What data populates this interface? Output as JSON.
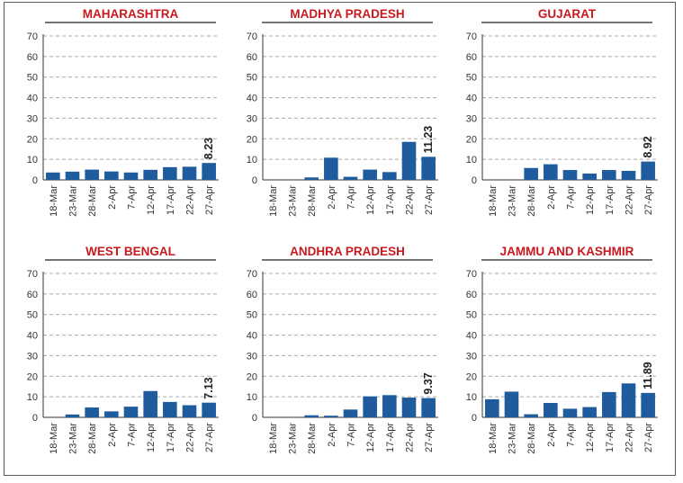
{
  "colors": {
    "bar": "#1f5c9e",
    "title": "#c8191f",
    "grid": "#aaaaaa",
    "axis": "#333333"
  },
  "chart_data": [
    {
      "type": "bar",
      "title": "MAHARASHTRA",
      "categories": [
        "18-Mar",
        "23-Mar",
        "28-Mar",
        "2-Apr",
        "7-Apr",
        "12-Apr",
        "17-Apr",
        "22-Apr",
        "27-Apr"
      ],
      "values": [
        3.6,
        4.0,
        5.0,
        4.1,
        3.6,
        4.9,
        6.2,
        6.4,
        8.23
      ],
      "data_label": "8.23",
      "ylim": [
        0,
        70
      ],
      "yticks": [
        0,
        10,
        20,
        30,
        40,
        50,
        60,
        70
      ],
      "grid": true
    },
    {
      "type": "bar",
      "title": "MADHYA PRADESH",
      "categories": [
        "18-Mar",
        "23-Mar",
        "28-Mar",
        "2-Apr",
        "7-Apr",
        "12-Apr",
        "17-Apr",
        "22-Apr",
        "27-Apr"
      ],
      "values": [
        0,
        0,
        1.2,
        10.8,
        1.5,
        5.0,
        3.8,
        18.5,
        11.23
      ],
      "data_label": "11.23",
      "ylim": [
        0,
        70
      ],
      "yticks": [
        0,
        10,
        20,
        30,
        40,
        50,
        60,
        70
      ],
      "grid": true
    },
    {
      "type": "bar",
      "title": "GUJARAT",
      "categories": [
        "18-Mar",
        "23-Mar",
        "28-Mar",
        "2-Apr",
        "7-Apr",
        "12-Apr",
        "17-Apr",
        "22-Apr",
        "27-Apr"
      ],
      "values": [
        0,
        0,
        5.8,
        7.6,
        4.8,
        3.1,
        4.8,
        4.4,
        8.92
      ],
      "data_label": "8.92",
      "ylim": [
        0,
        70
      ],
      "yticks": [
        0,
        10,
        20,
        30,
        40,
        50,
        60,
        70
      ],
      "grid": true
    },
    {
      "type": "bar",
      "title": "WEST BENGAL",
      "categories": [
        "18-Mar",
        "23-Mar",
        "28-Mar",
        "2-Apr",
        "7-Apr",
        "12-Apr",
        "17-Apr",
        "22-Apr",
        "27-Apr"
      ],
      "values": [
        0,
        1.4,
        4.8,
        2.9,
        5.2,
        12.8,
        7.5,
        5.9,
        7.13
      ],
      "data_label": "7.13",
      "ylim": [
        0,
        70
      ],
      "yticks": [
        0,
        10,
        20,
        30,
        40,
        50,
        60,
        70
      ],
      "grid": true
    },
    {
      "type": "bar",
      "title": "ANDHRA PRADESH",
      "categories": [
        "18-Mar",
        "23-Mar",
        "28-Mar",
        "2-Apr",
        "7-Apr",
        "12-Apr",
        "17-Apr",
        "22-Apr",
        "27-Apr"
      ],
      "values": [
        0,
        0,
        1.0,
        0.8,
        3.8,
        10.2,
        10.8,
        9.6,
        9.37
      ],
      "data_label": "9.37",
      "ylim": [
        0,
        70
      ],
      "yticks": [
        0,
        10,
        20,
        30,
        40,
        50,
        60,
        70
      ],
      "grid": true
    },
    {
      "type": "bar",
      "title": "JAMMU AND KASHMIR",
      "categories": [
        "18-Mar",
        "23-Mar",
        "28-Mar",
        "2-Apr",
        "7-Apr",
        "12-Apr",
        "17-Apr",
        "22-Apr",
        "27-Apr"
      ],
      "values": [
        8.8,
        12.5,
        1.5,
        7.0,
        4.2,
        5.0,
        12.3,
        16.5,
        11.89
      ],
      "data_label": "11.89",
      "ylim": [
        0,
        70
      ],
      "yticks": [
        0,
        10,
        20,
        30,
        40,
        50,
        60,
        70
      ],
      "grid": true
    }
  ]
}
